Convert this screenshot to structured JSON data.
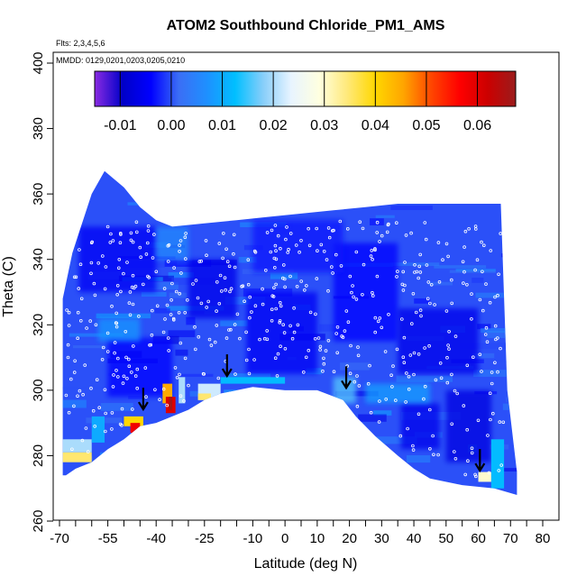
{
  "chart_data": {
    "type": "heatmap",
    "title": "ATOM2 Southbound Chloride_PM1_AMS",
    "flights_note": "Flts: 2,3,4,5,6",
    "dates_note": "MMDD: 0129,0201,0203,0205,0210",
    "xlabel": "Latitude (deg N)",
    "ylabel": "Theta (C)",
    "xlim": [
      -70,
      80
    ],
    "ylim": [
      260,
      400
    ],
    "x_ticks": [
      -70,
      -55,
      -40,
      -25,
      -10,
      0,
      10,
      20,
      30,
      40,
      50,
      60,
      70,
      80
    ],
    "x_tick_labels": [
      "-70",
      "-55",
      "-40",
      "-25",
      "-10",
      "0",
      "10",
      "20",
      "30",
      "40",
      "50",
      "60",
      "70",
      "80"
    ],
    "x_minor_ticks": [
      -65,
      -60,
      -50,
      -45,
      -35,
      -30,
      -20,
      -15,
      -5,
      5,
      15,
      25,
      35,
      45,
      55,
      65,
      75
    ],
    "y_ticks": [
      260,
      280,
      300,
      320,
      340,
      360,
      380,
      400
    ],
    "y_tick_labels": [
      "260",
      "280",
      "300",
      "320",
      "340",
      "360",
      "380",
      "400"
    ],
    "colorbar": {
      "min": -0.015,
      "max": 0.0675,
      "ticks": [
        -0.01,
        0.0,
        0.01,
        0.02,
        0.03,
        0.04,
        0.05,
        0.06
      ],
      "tick_labels": [
        "-0.01",
        "0.00",
        "0.01",
        "0.02",
        "0.03",
        "0.04",
        "0.05",
        "0.06"
      ],
      "stops": [
        "#8a2be2",
        "#0000c8",
        "#0000ff",
        "#3b6ef5",
        "#1e90ff",
        "#00bfff",
        "#87cefa",
        "#e8f4ff",
        "#ffffe0",
        "#ffe97a",
        "#ffd700",
        "#ffa500",
        "#ff4500",
        "#ff0000",
        "#cc0000",
        "#9b1c1c"
      ]
    },
    "domain_top": [
      [
        -69,
        328
      ],
      [
        -66,
        342
      ],
      [
        -60,
        360
      ],
      [
        -56,
        367
      ],
      [
        -50,
        362
      ],
      [
        -45,
        356
      ],
      [
        -40,
        352
      ],
      [
        -35,
        350
      ],
      [
        -25,
        351
      ],
      [
        -15,
        352
      ],
      [
        -5,
        353
      ],
      [
        5,
        354
      ],
      [
        15,
        355
      ],
      [
        25,
        356
      ],
      [
        35,
        357
      ],
      [
        45,
        357
      ],
      [
        55,
        357
      ],
      [
        65,
        357
      ],
      [
        67,
        357
      ],
      [
        69,
        300
      ],
      [
        72,
        275
      ],
      [
        72,
        268
      ]
    ],
    "domain_bottom": [
      [
        72,
        268
      ],
      [
        65,
        270
      ],
      [
        55,
        271
      ],
      [
        45,
        273
      ],
      [
        40,
        276
      ],
      [
        35,
        280
      ],
      [
        28,
        286
      ],
      [
        22,
        292
      ],
      [
        18,
        297
      ],
      [
        10,
        300
      ],
      [
        0,
        300
      ],
      [
        -10,
        301
      ],
      [
        -20,
        299
      ],
      [
        -25,
        297
      ],
      [
        -30,
        294
      ],
      [
        -40,
        290
      ],
      [
        -45,
        289
      ],
      [
        -50,
        285
      ],
      [
        -55,
        282
      ],
      [
        -60,
        278
      ],
      [
        -65,
        276
      ],
      [
        -68,
        274
      ],
      [
        -69,
        274
      ]
    ],
    "background_value": 0.0,
    "features": [
      {
        "x": [
          -64,
          -40
        ],
        "y": [
          330,
          350
        ],
        "value": -0.005
      },
      {
        "x": [
          -30,
          -15
        ],
        "y": [
          322,
          340
        ],
        "value": -0.006
      },
      {
        "x": [
          -12,
          10
        ],
        "y": [
          305,
          330
        ],
        "value": -0.005
      },
      {
        "x": [
          15,
          35
        ],
        "y": [
          315,
          345
        ],
        "value": -0.004
      },
      {
        "x": [
          35,
          60
        ],
        "y": [
          305,
          325
        ],
        "value": -0.006
      },
      {
        "x": [
          50,
          64
        ],
        "y": [
          278,
          300
        ],
        "value": -0.007
      },
      {
        "x": [
          36,
          48
        ],
        "y": [
          282,
          296
        ],
        "value": -0.006
      },
      {
        "x": [
          -55,
          -35
        ],
        "y": [
          298,
          316
        ],
        "value": -0.004
      },
      {
        "x": [
          -10,
          18
        ],
        "y": [
          336,
          352
        ],
        "value": -0.003
      },
      {
        "x": [
          -58,
          -45
        ],
        "y": [
          315,
          322
        ],
        "value": 0.008
      },
      {
        "x": [
          -40,
          -30
        ],
        "y": [
          340,
          350
        ],
        "value": 0.006
      },
      {
        "x": [
          25,
          45
        ],
        "y": [
          296,
          302
        ],
        "value": 0.009
      },
      {
        "x": [
          -20,
          0
        ],
        "y": [
          302,
          304
        ],
        "value": 0.012
      },
      {
        "x": [
          -69,
          -60
        ],
        "y": [
          281,
          285
        ],
        "value": 0.02
      },
      {
        "x": [
          -69,
          -60
        ],
        "y": [
          278,
          281
        ],
        "value": 0.035
      },
      {
        "x": [
          -60,
          -56
        ],
        "y": [
          284,
          292
        ],
        "value": 0.01
      },
      {
        "x": [
          -50,
          -44
        ],
        "y": [
          289,
          292
        ],
        "value": 0.04
      },
      {
        "x": [
          -48,
          -45
        ],
        "y": [
          287,
          290
        ],
        "value": 0.058
      },
      {
        "x": [
          -38,
          -35
        ],
        "y": [
          296,
          302
        ],
        "value": 0.045
      },
      {
        "x": [
          -37,
          -34
        ],
        "y": [
          293,
          298
        ],
        "value": 0.06
      },
      {
        "x": [
          -36,
          -35
        ],
        "y": [
          294,
          298
        ],
        "value": 0.066
      },
      {
        "x": [
          -33,
          -31
        ],
        "y": [
          296,
          304
        ],
        "value": 0.02
      },
      {
        "x": [
          -27,
          -20
        ],
        "y": [
          297,
          302
        ],
        "value": 0.022
      },
      {
        "x": [
          -27,
          -23
        ],
        "y": [
          297,
          299
        ],
        "value": 0.035
      },
      {
        "x": [
          15,
          22
        ],
        "y": [
          296,
          304
        ],
        "value": 0.016
      },
      {
        "x": [
          64,
          68
        ],
        "y": [
          270,
          285
        ],
        "value": 0.012
      },
      {
        "x": [
          60,
          64
        ],
        "y": [
          272,
          275
        ],
        "value": 0.03
      }
    ],
    "arrows_x": [
      -44,
      -18,
      19,
      60.5
    ]
  }
}
